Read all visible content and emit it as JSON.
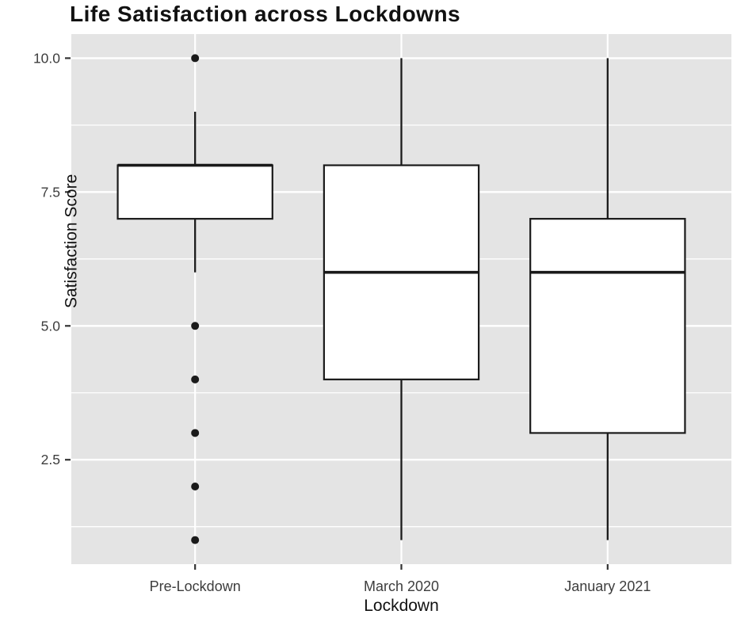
{
  "chart": {
    "title": "Life Satisfaction across Lockdowns",
    "x_axis_title": "Lockdown",
    "y_axis_title": "Satisfaction Score"
  },
  "chart_data": {
    "type": "boxplot",
    "title": "Life Satisfaction across Lockdowns",
    "xlabel": "Lockdown",
    "ylabel": "Satisfaction Score",
    "categories": [
      "Pre-Lockdown",
      "March 2020",
      "January 2021"
    ],
    "series": [
      {
        "category": "Pre-Lockdown",
        "whisker_low": 6,
        "q1": 7,
        "median": 8,
        "q3": 8,
        "whisker_high": 9,
        "outliers": [
          10,
          5,
          4,
          3,
          2,
          1
        ]
      },
      {
        "category": "March 2020",
        "whisker_low": 1,
        "q1": 4,
        "median": 6,
        "q3": 8,
        "whisker_high": 10,
        "outliers": []
      },
      {
        "category": "January 2021",
        "whisker_low": 1,
        "q1": 3,
        "median": 6,
        "q3": 7,
        "whisker_high": 10,
        "outliers": []
      }
    ],
    "y_ticks": [
      2.5,
      5.0,
      7.5,
      10.0
    ],
    "y_tick_labels": [
      "2.5",
      "5.0",
      "7.5",
      "10.0"
    ],
    "y_minor_ticks": [
      1.25,
      3.75,
      6.25,
      8.75
    ],
    "ylim": [
      0.55,
      10.45
    ],
    "grid": true,
    "legend": false,
    "style": {
      "panel_background": "#e4e4e4",
      "grid_color": "#ffffff",
      "box_fill": "#ffffff",
      "line_color": "#1a1a1a",
      "tick_mark_color": "#333333",
      "tick_label_color": "#3d3d3d"
    }
  }
}
